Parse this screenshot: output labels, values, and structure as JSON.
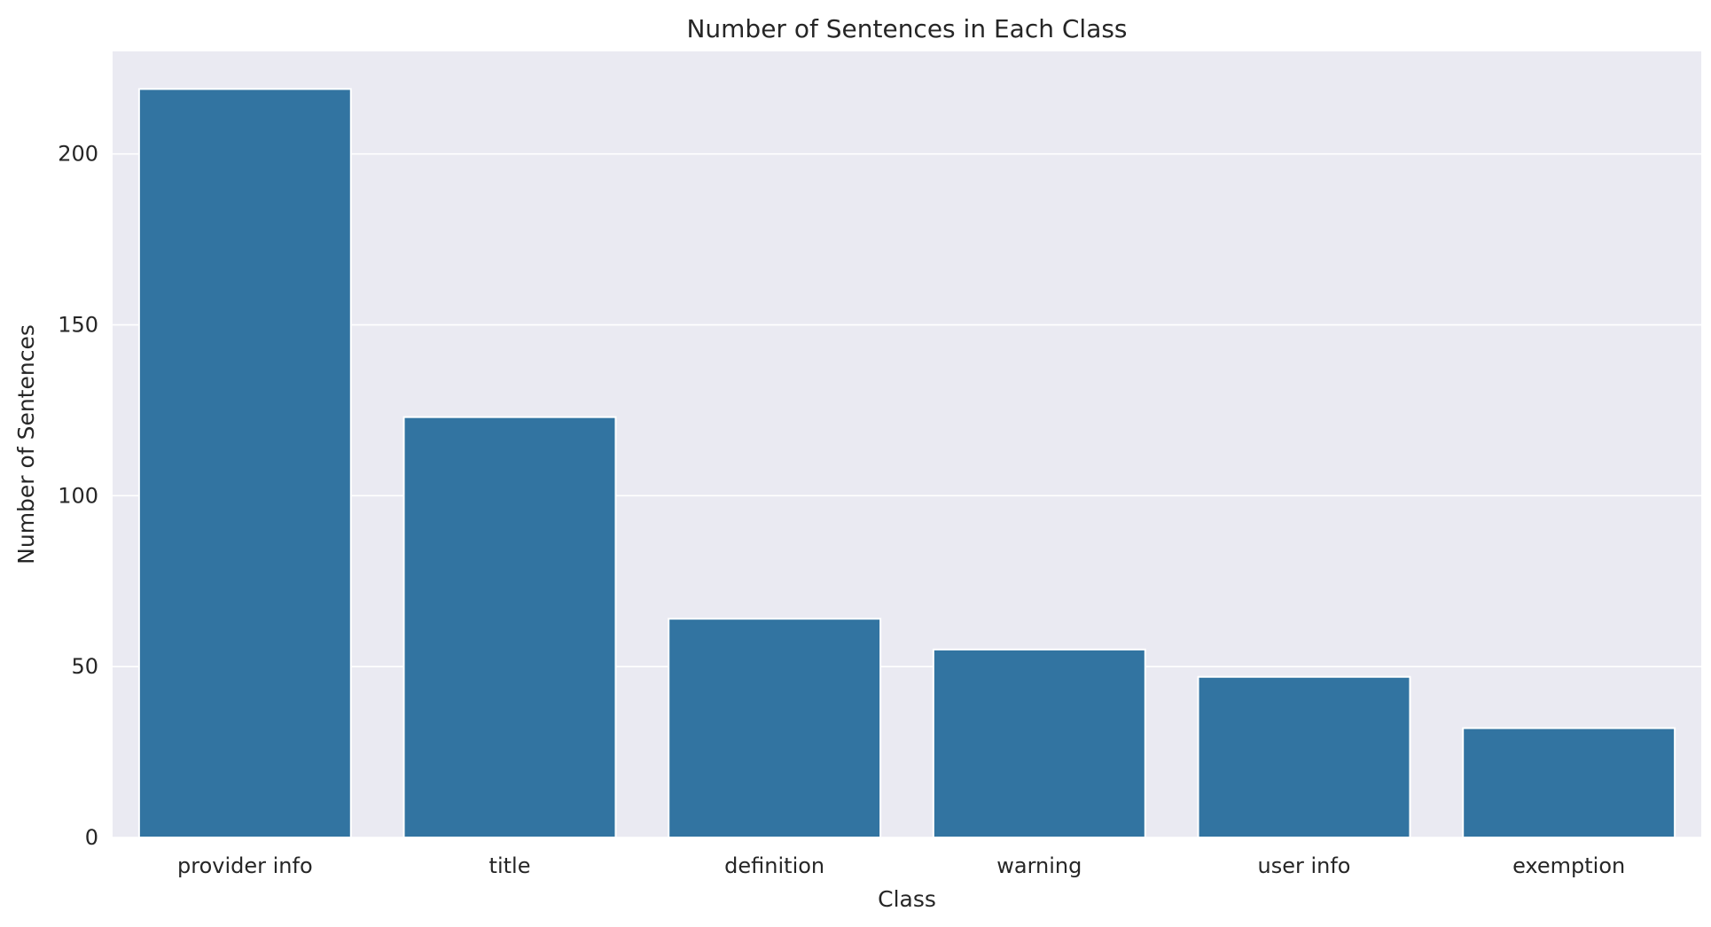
{
  "chart_data": {
    "type": "bar",
    "title": "Number of Sentences in Each Class",
    "xlabel": "Class",
    "ylabel": "Number of Sentences",
    "categories": [
      "provider info",
      "title",
      "definition",
      "warning",
      "user info",
      "exemption"
    ],
    "values": [
      219,
      123,
      64,
      55,
      47,
      32
    ],
    "ylim": [
      0,
      230
    ],
    "yticks": [
      0,
      50,
      100,
      150,
      200
    ],
    "grid": true,
    "legend": "none",
    "colors": {
      "bar": "#3274a1",
      "plot_background": "#eaeaf2",
      "grid": "#ffffff"
    }
  }
}
